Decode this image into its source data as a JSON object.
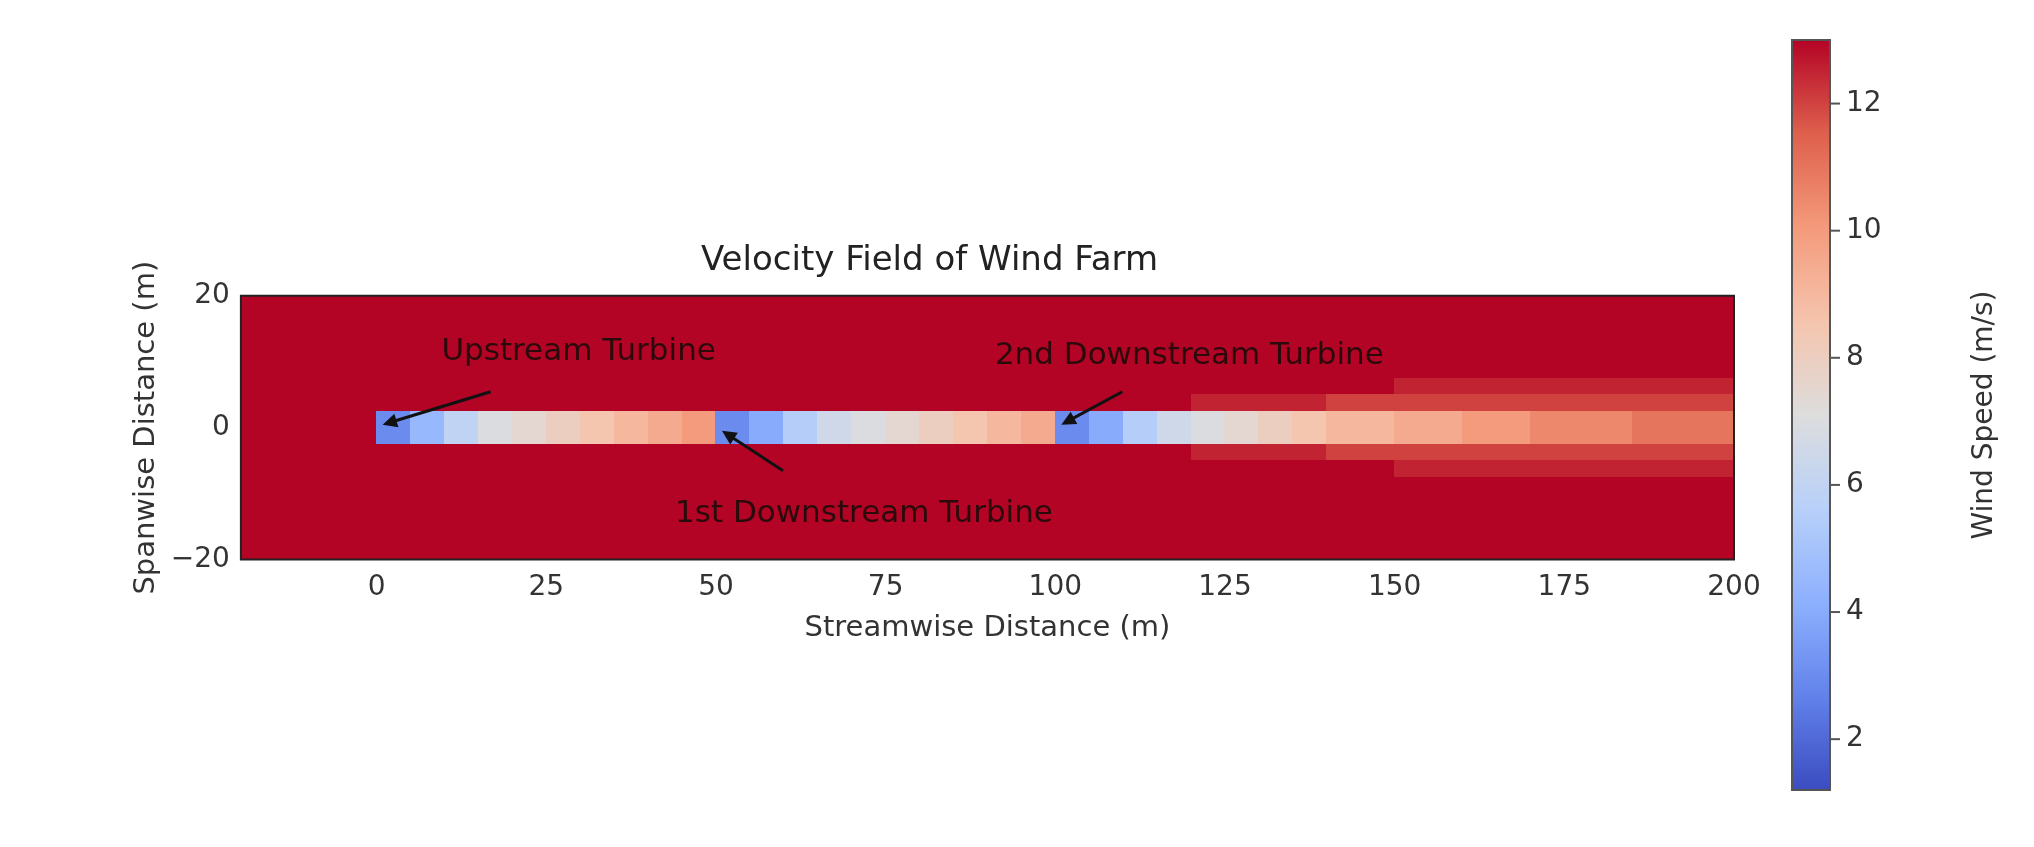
{
  "chart_data": {
    "type": "heatmap",
    "title": "Velocity Field of Wind Farm",
    "xlabel": "Streamwise Distance (m)",
    "ylabel": "Spanwise Distance (m)",
    "clabel": "Wind Speed (m/s)",
    "x": [
      -17.5,
      -12.5,
      -7.5,
      -2.5,
      2.5,
      7.5,
      12.5,
      17.5,
      22.5,
      27.5,
      32.5,
      37.5,
      42.5,
      47.5,
      52.5,
      57.5,
      62.5,
      67.5,
      72.5,
      77.5,
      82.5,
      87.5,
      92.5,
      97.5,
      102.5,
      107.5,
      112.5,
      117.5,
      122.5,
      127.5,
      132.5,
      137.5,
      142.5,
      147.5,
      152.5,
      157.5,
      162.5,
      167.5,
      172.5,
      177.5,
      182.5,
      187.5,
      192.5,
      197.5
    ],
    "y": [
      18.75,
      16.25,
      13.75,
      11.25,
      8.75,
      6.25,
      3.75,
      1.25,
      -1.25,
      -3.75,
      -6.25,
      -8.75,
      -11.25,
      -13.75,
      -16.25,
      -18.75
    ],
    "cells": [
      [
        13,
        13,
        13,
        13,
        13,
        13,
        13,
        13,
        13,
        13,
        13,
        13,
        13,
        13,
        13,
        13,
        13,
        13,
        13,
        13,
        13,
        13,
        13,
        13,
        13,
        13,
        13,
        13,
        13,
        13,
        13,
        13,
        13,
        13,
        13,
        13,
        13,
        13,
        13,
        13,
        13,
        13,
        13,
        13
      ],
      [
        13,
        13,
        13,
        13,
        13,
        13,
        13,
        13,
        13,
        13,
        13,
        13,
        13,
        13,
        13,
        13,
        13,
        13,
        13,
        13,
        13,
        13,
        13,
        13,
        13,
        13,
        13,
        13,
        13,
        13,
        13,
        13,
        13,
        13,
        13,
        13,
        13,
        13,
        13,
        13,
        13,
        13,
        13,
        13
      ],
      [
        13,
        13,
        13,
        13,
        13,
        13,
        13,
        13,
        13,
        13,
        13,
        13,
        13,
        13,
        13,
        13,
        13,
        13,
        13,
        13,
        13,
        13,
        13,
        13,
        13,
        13,
        13,
        13,
        13,
        13,
        13,
        13,
        13,
        13,
        13,
        13,
        13,
        13,
        13,
        13,
        13,
        13,
        13,
        13
      ],
      [
        13,
        13,
        13,
        13,
        13,
        13,
        13,
        13,
        13,
        13,
        13,
        13,
        13,
        13,
        13,
        13,
        13,
        13,
        13,
        13,
        13,
        13,
        13,
        13,
        13,
        13,
        13,
        13,
        13,
        13,
        13,
        13,
        13,
        13,
        13,
        13,
        13,
        13,
        13,
        13,
        13,
        13,
        13,
        13
      ],
      [
        13,
        13,
        13,
        13,
        13,
        13,
        13,
        13,
        13,
        13,
        13,
        13,
        13,
        13,
        13,
        13,
        13,
        13,
        13,
        13,
        13,
        13,
        13,
        13,
        13,
        13,
        13,
        13,
        13,
        13,
        13,
        13,
        13,
        13,
        13,
        13,
        13,
        13,
        13,
        13,
        13,
        13,
        13,
        13
      ],
      [
        13,
        13,
        13,
        13,
        13,
        13,
        13,
        13,
        13,
        13,
        13,
        13,
        13,
        13,
        13,
        13,
        13,
        13,
        13,
        13,
        13,
        13,
        13,
        13,
        13,
        13,
        13,
        13,
        13,
        13,
        13,
        13,
        13,
        13,
        12.5,
        12.5,
        12.5,
        12.5,
        12.5,
        12.5,
        12.5,
        12.5,
        12.5,
        12.5
      ],
      [
        13,
        13,
        13,
        13,
        13,
        13,
        13,
        13,
        13,
        13,
        13,
        13,
        13,
        13,
        13,
        13,
        13,
        13,
        13,
        13,
        13,
        13,
        13,
        13,
        13,
        13,
        13,
        13,
        12.5,
        12.5,
        12.5,
        12.5,
        12,
        12,
        12,
        12,
        12,
        12,
        12,
        12,
        12,
        12,
        12,
        12
      ],
      [
        13,
        13,
        13,
        13,
        3,
        4.5,
        6,
        7,
        7.5,
        8,
        8.5,
        9,
        9.5,
        10,
        3,
        4,
        5.5,
        6.5,
        7,
        7.5,
        8,
        8.5,
        9,
        9.5,
        3,
        4,
        5.5,
        6.5,
        7,
        7.5,
        8,
        8.5,
        9,
        9,
        9.5,
        9.5,
        10,
        10,
        10.5,
        10.5,
        10.5,
        11,
        11,
        11
      ],
      [
        13,
        13,
        13,
        13,
        3,
        4.5,
        6,
        7,
        7.5,
        8,
        8.5,
        9,
        9.5,
        10,
        3,
        4,
        5.5,
        6.5,
        7,
        7.5,
        8,
        8.5,
        9,
        9.5,
        3,
        4,
        5.5,
        6.5,
        7,
        7.5,
        8,
        8.5,
        9,
        9,
        9.5,
        9.5,
        10,
        10,
        10.5,
        10.5,
        10.5,
        11,
        11,
        11
      ],
      [
        13,
        13,
        13,
        13,
        13,
        13,
        13,
        13,
        13,
        13,
        13,
        13,
        13,
        13,
        13,
        13,
        13,
        13,
        13,
        13,
        13,
        13,
        13,
        13,
        13,
        13,
        13,
        13,
        12.5,
        12.5,
        12.5,
        12.5,
        12,
        12,
        12,
        12,
        12,
        12,
        12,
        12,
        12,
        12,
        12,
        12
      ],
      [
        13,
        13,
        13,
        13,
        13,
        13,
        13,
        13,
        13,
        13,
        13,
        13,
        13,
        13,
        13,
        13,
        13,
        13,
        13,
        13,
        13,
        13,
        13,
        13,
        13,
        13,
        13,
        13,
        13,
        13,
        13,
        13,
        13,
        13,
        12.5,
        12.5,
        12.5,
        12.5,
        12.5,
        12.5,
        12.5,
        12.5,
        12.5,
        12.5
      ],
      [
        13,
        13,
        13,
        13,
        13,
        13,
        13,
        13,
        13,
        13,
        13,
        13,
        13,
        13,
        13,
        13,
        13,
        13,
        13,
        13,
        13,
        13,
        13,
        13,
        13,
        13,
        13,
        13,
        13,
        13,
        13,
        13,
        13,
        13,
        13,
        13,
        13,
        13,
        13,
        13,
        13,
        13,
        13,
        13
      ],
      [
        13,
        13,
        13,
        13,
        13,
        13,
        13,
        13,
        13,
        13,
        13,
        13,
        13,
        13,
        13,
        13,
        13,
        13,
        13,
        13,
        13,
        13,
        13,
        13,
        13,
        13,
        13,
        13,
        13,
        13,
        13,
        13,
        13,
        13,
        13,
        13,
        13,
        13,
        13,
        13,
        13,
        13,
        13,
        13
      ],
      [
        13,
        13,
        13,
        13,
        13,
        13,
        13,
        13,
        13,
        13,
        13,
        13,
        13,
        13,
        13,
        13,
        13,
        13,
        13,
        13,
        13,
        13,
        13,
        13,
        13,
        13,
        13,
        13,
        13,
        13,
        13,
        13,
        13,
        13,
        13,
        13,
        13,
        13,
        13,
        13,
        13,
        13,
        13,
        13
      ],
      [
        13,
        13,
        13,
        13,
        13,
        13,
        13,
        13,
        13,
        13,
        13,
        13,
        13,
        13,
        13,
        13,
        13,
        13,
        13,
        13,
        13,
        13,
        13,
        13,
        13,
        13,
        13,
        13,
        13,
        13,
        13,
        13,
        13,
        13,
        13,
        13,
        13,
        13,
        13,
        13,
        13,
        13,
        13,
        13
      ],
      [
        13,
        13,
        13,
        13,
        13,
        13,
        13,
        13,
        13,
        13,
        13,
        13,
        13,
        13,
        13,
        13,
        13,
        13,
        13,
        13,
        13,
        13,
        13,
        13,
        13,
        13,
        13,
        13,
        13,
        13,
        13,
        13,
        13,
        13,
        13,
        13,
        13,
        13,
        13,
        13,
        13,
        13,
        13,
        13
      ]
    ],
    "xlim": [
      -20,
      200
    ],
    "xticks": [
      0,
      25,
      50,
      75,
      100,
      125,
      150,
      175,
      200
    ],
    "ylim": [
      -20,
      20
    ],
    "yticks": [
      -20,
      0,
      20
    ],
    "clim": [
      1.2,
      13
    ],
    "cticks": [
      2,
      4,
      6,
      8,
      10,
      12
    ],
    "annotations": [
      "Upstream Turbine",
      "1st Downstream Turbine",
      "2nd Downstream Turbine"
    ]
  }
}
